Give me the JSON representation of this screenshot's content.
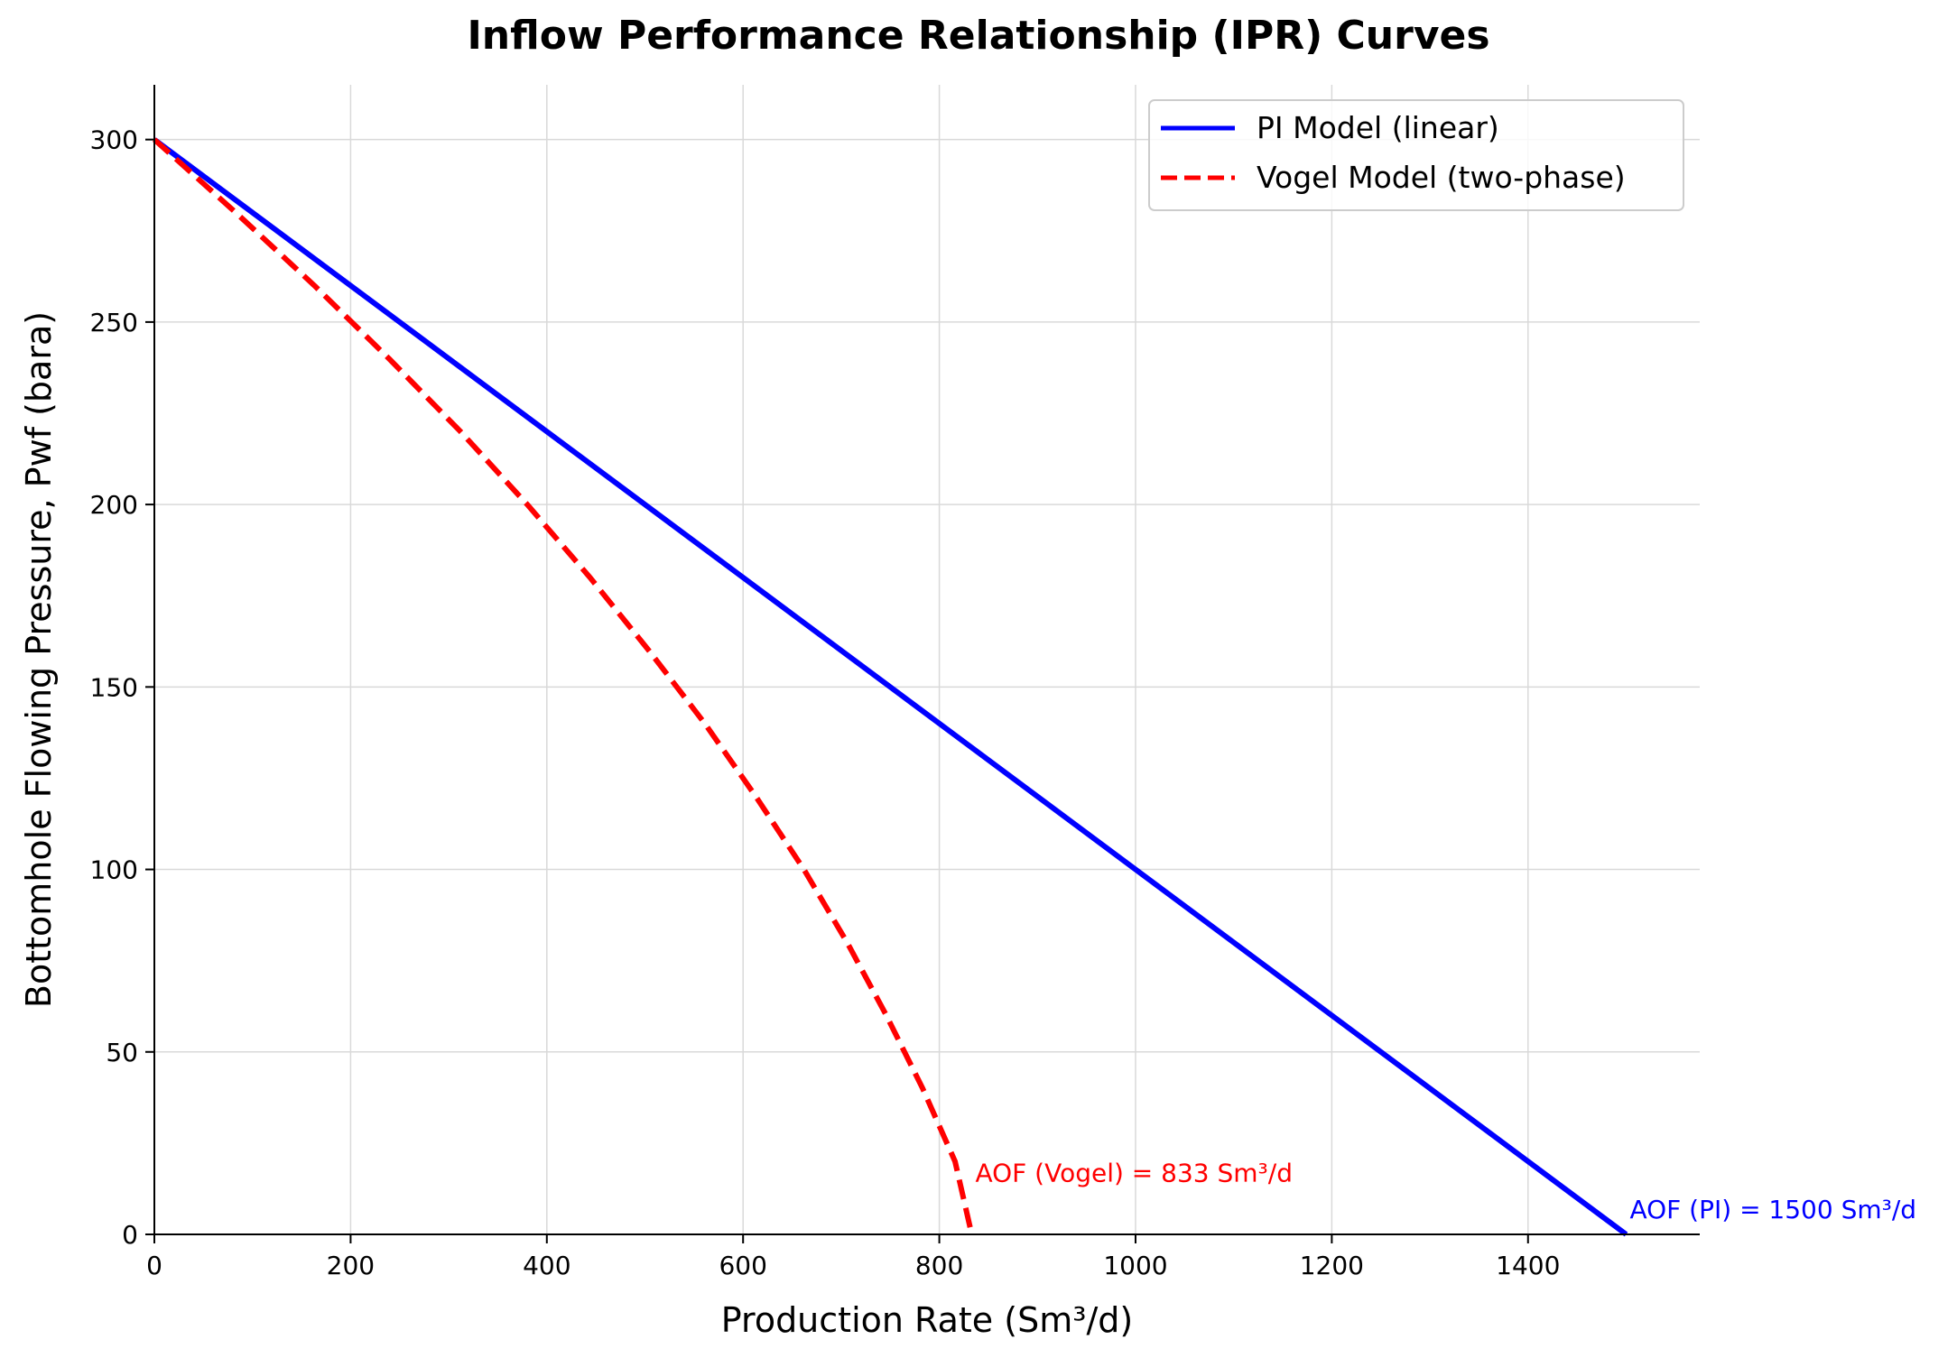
{
  "chart_data": {
    "type": "line",
    "title": "Inflow Performance Relationship (IPR) Curves",
    "xlabel": "Production Rate (Sm³/d)",
    "ylabel": "Bottomhole Flowing Pressure, Pwf (bara)",
    "xlim": [
      0,
      1575
    ],
    "ylim": [
      0,
      315
    ],
    "x_ticks": [
      0,
      200,
      400,
      600,
      800,
      1000,
      1200,
      1400
    ],
    "y_ticks": [
      0,
      50,
      100,
      150,
      200,
      250,
      300
    ],
    "grid": true,
    "legend_position": "top-right",
    "series": [
      {
        "name": "PI Model (linear)",
        "color": "#0000ff",
        "style": "solid",
        "x": [
          0,
          1500
        ],
        "y": [
          300,
          0
        ]
      },
      {
        "name": "Vogel Model (two-phase)",
        "color": "#ff0000",
        "style": "dashed",
        "x": [
          0,
          83,
          163,
          239,
          312,
          380,
          444,
          504,
          561,
          613,
          662,
          706,
          746,
          783,
          816,
          833
        ],
        "y": [
          300,
          280,
          260,
          240,
          220,
          200,
          180,
          160,
          140,
          120,
          100,
          80,
          60,
          40,
          20,
          0
        ]
      }
    ],
    "reference_lines": [
      {
        "axis": "y",
        "value": 0,
        "color": "#888888",
        "style": "dashed"
      }
    ],
    "annotations": [
      {
        "text": "AOF (Vogel) = 833 Sm³/d",
        "x": 833,
        "y": 15,
        "color": "#ff0000"
      },
      {
        "text": "AOF (PI) = 1500 Sm³/d",
        "x": 1500,
        "y": 5,
        "color": "#0000ff"
      }
    ]
  }
}
